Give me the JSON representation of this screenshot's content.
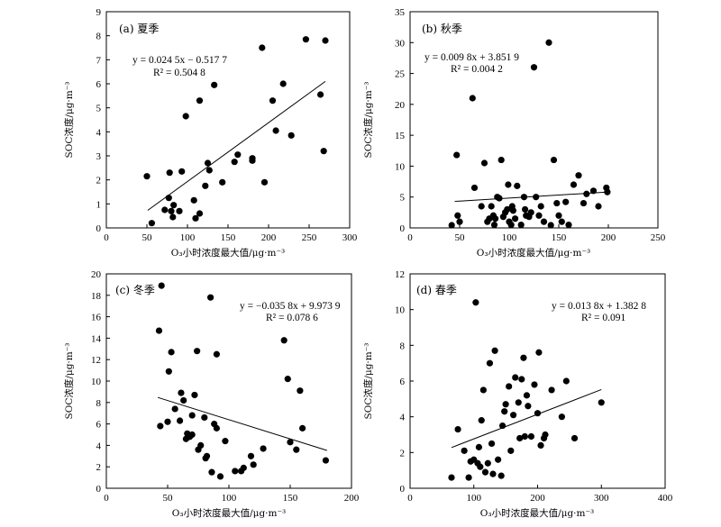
{
  "chart_data": [
    {
      "type": "scatter",
      "title": "(a) 夏季",
      "equation": "y = 0.024 5x − 0.517 7",
      "r2": "R² = 0.504 8",
      "xlabel": "O₃小时浓度最大值/μg·m⁻³",
      "ylabel": "SOC浓度/μg·m⁻³",
      "xlim": [
        0,
        300
      ],
      "ylim": [
        0,
        9
      ],
      "xticks": [
        "0",
        "50",
        "100",
        "150",
        "200",
        "250",
        "300"
      ],
      "yticks": [
        "0",
        "1",
        "2",
        "3",
        "4",
        "5",
        "6",
        "7",
        "8",
        "9"
      ],
      "fit": {
        "slope": 0.0245,
        "intercept": -0.5177,
        "x_range": [
          51,
          270
        ]
      },
      "points": [
        [
          50,
          2.15
        ],
        [
          56,
          0.2
        ],
        [
          72,
          0.75
        ],
        [
          77,
          1.25
        ],
        [
          78,
          2.3
        ],
        [
          80,
          0.7
        ],
        [
          82,
          0.45
        ],
        [
          83,
          0.95
        ],
        [
          90,
          0.7
        ],
        [
          93,
          2.35
        ],
        [
          98,
          4.65
        ],
        [
          108,
          1.15
        ],
        [
          110,
          0.4
        ],
        [
          115,
          0.6
        ],
        [
          115,
          5.3
        ],
        [
          122,
          1.75
        ],
        [
          125,
          2.7
        ],
        [
          127,
          2.4
        ],
        [
          133,
          5.95
        ],
        [
          143,
          1.9
        ],
        [
          158,
          2.75
        ],
        [
          162,
          3.05
        ],
        [
          180,
          2.8
        ],
        [
          180,
          2.9
        ],
        [
          192,
          7.5
        ],
        [
          195,
          1.9
        ],
        [
          205,
          5.3
        ],
        [
          209,
          4.05
        ],
        [
          218,
          6.0
        ],
        [
          228,
          3.85
        ],
        [
          246,
          7.85
        ],
        [
          264,
          5.55
        ],
        [
          268,
          3.2
        ],
        [
          270,
          7.8
        ]
      ]
    },
    {
      "type": "scatter",
      "title": "(b) 秋季",
      "equation": "y = 0.009 8x + 3.851 9",
      "r2": "R² = 0.004 2",
      "xlabel": "O₃小时浓度最大值/μg·m⁻³",
      "ylabel": "SOC浓度/μg·m⁻³",
      "xlim": [
        0,
        250
      ],
      "ylim": [
        0,
        35
      ],
      "xticks": [
        "0",
        "50",
        "100",
        "150",
        "200",
        "250"
      ],
      "yticks": [
        "0",
        "5",
        "10",
        "15",
        "20",
        "25",
        "30",
        "35"
      ],
      "fit": {
        "slope": 0.0098,
        "intercept": 3.8519,
        "x_range": [
          45,
          200
        ]
      },
      "points": [
        [
          42,
          0.3
        ],
        [
          47,
          11.8
        ],
        [
          48,
          2.0
        ],
        [
          50,
          1.0
        ],
        [
          63,
          21.0
        ],
        [
          65,
          6.5
        ],
        [
          72,
          3.5
        ],
        [
          75,
          10.5
        ],
        [
          78,
          1.0
        ],
        [
          80,
          1.5
        ],
        [
          82,
          3.5
        ],
        [
          84,
          2.0
        ],
        [
          85,
          0.5
        ],
        [
          86,
          1.5
        ],
        [
          88,
          5.0
        ],
        [
          90,
          4.8
        ],
        [
          92,
          11.0
        ],
        [
          94,
          1.8
        ],
        [
          96,
          2.5
        ],
        [
          98,
          3.0
        ],
        [
          99,
          7.0
        ],
        [
          100,
          1.0
        ],
        [
          102,
          0.5
        ],
        [
          103,
          3.5
        ],
        [
          104,
          2.8
        ],
        [
          106,
          1.5
        ],
        [
          108,
          6.8
        ],
        [
          112,
          0.5
        ],
        [
          115,
          5.0
        ],
        [
          116,
          3.0
        ],
        [
          117,
          2.0
        ],
        [
          120,
          1.8
        ],
        [
          122,
          2.5
        ],
        [
          125,
          26.0
        ],
        [
          127,
          5.0
        ],
        [
          130,
          2.0
        ],
        [
          132,
          3.5
        ],
        [
          135,
          1.0
        ],
        [
          140,
          30.0
        ],
        [
          142,
          0.3
        ],
        [
          145,
          11.0
        ],
        [
          148,
          4.0
        ],
        [
          150,
          2.0
        ],
        [
          153,
          1.0
        ],
        [
          157,
          4.2
        ],
        [
          160,
          0.5
        ],
        [
          165,
          7.0
        ],
        [
          170,
          8.5
        ],
        [
          175,
          4.0
        ],
        [
          178,
          5.5
        ],
        [
          185,
          6.0
        ],
        [
          190,
          3.5
        ],
        [
          198,
          6.5
        ],
        [
          199,
          5.8
        ]
      ]
    },
    {
      "type": "scatter",
      "title": "(c) 冬季",
      "equation": "y = −0.035 8x + 9.973 9",
      "r2": "R² = 0.078 6",
      "xlabel": "O₃小时浓度最大值/μg·m⁻³",
      "ylabel": "SOC浓度/μg·m⁻³",
      "xlim": [
        0,
        200
      ],
      "ylim": [
        0,
        20
      ],
      "xticks": [
        "0",
        "50",
        "100",
        "150",
        "200"
      ],
      "yticks": [
        "0",
        "2",
        "4",
        "6",
        "8",
        "10",
        "12",
        "14",
        "16",
        "18",
        "20"
      ],
      "fit": {
        "slope": -0.0358,
        "intercept": 9.9739,
        "x_range": [
          42,
          180
        ]
      },
      "points": [
        [
          43,
          14.7
        ],
        [
          44,
          5.8
        ],
        [
          45,
          18.9
        ],
        [
          50,
          6.2
        ],
        [
          51,
          10.9
        ],
        [
          53,
          12.7
        ],
        [
          56,
          7.4
        ],
        [
          60,
          6.3
        ],
        [
          61,
          8.9
        ],
        [
          63,
          8.2
        ],
        [
          65,
          4.6
        ],
        [
          66,
          5.1
        ],
        [
          68,
          4.8
        ],
        [
          70,
          5.0
        ],
        [
          70,
          6.8
        ],
        [
          72,
          8.7
        ],
        [
          74,
          12.8
        ],
        [
          75,
          3.6
        ],
        [
          77,
          4.0
        ],
        [
          80,
          6.6
        ],
        [
          81,
          2.8
        ],
        [
          82,
          3.0
        ],
        [
          85,
          17.8
        ],
        [
          86,
          1.5
        ],
        [
          88,
          6.0
        ],
        [
          90,
          12.5
        ],
        [
          90,
          5.6
        ],
        [
          93,
          1.1
        ],
        [
          97,
          4.4
        ],
        [
          105,
          1.6
        ],
        [
          110,
          1.6
        ],
        [
          112,
          1.9
        ],
        [
          118,
          3.0
        ],
        [
          120,
          2.2
        ],
        [
          128,
          3.7
        ],
        [
          145,
          13.8
        ],
        [
          148,
          10.2
        ],
        [
          150,
          4.3
        ],
        [
          155,
          3.6
        ],
        [
          158,
          9.1
        ],
        [
          160,
          5.6
        ],
        [
          179,
          2.6
        ]
      ]
    },
    {
      "type": "scatter",
      "title": "(d) 春季",
      "equation": "y = 0.013 8x + 1.382 8",
      "r2": "R² = 0.091",
      "xlabel": "O₃小时浓度最大值/μg·m⁻³",
      "ylabel": "SOC浓度/μg·m⁻³",
      "xlim": [
        0,
        400
      ],
      "ylim": [
        0,
        12
      ],
      "xticks": [
        "0",
        "100",
        "200",
        "300",
        "400"
      ],
      "yticks": [
        "0",
        "2",
        "4",
        "6",
        "8",
        "10",
        "12"
      ],
      "fit": {
        "slope": 0.0138,
        "intercept": 1.3828,
        "x_range": [
          65,
          300
        ]
      },
      "points": [
        [
          65,
          0.6
        ],
        [
          75,
          3.3
        ],
        [
          85,
          2.1
        ],
        [
          92,
          0.6
        ],
        [
          95,
          1.5
        ],
        [
          100,
          1.6
        ],
        [
          103,
          10.4
        ],
        [
          106,
          1.4
        ],
        [
          108,
          2.3
        ],
        [
          110,
          1.2
        ],
        [
          112,
          3.8
        ],
        [
          115,
          5.5
        ],
        [
          118,
          0.9
        ],
        [
          122,
          1.4
        ],
        [
          125,
          7.0
        ],
        [
          128,
          2.5
        ],
        [
          130,
          0.8
        ],
        [
          133,
          7.7
        ],
        [
          138,
          1.6
        ],
        [
          143,
          0.7
        ],
        [
          145,
          3.5
        ],
        [
          148,
          4.3
        ],
        [
          150,
          4.7
        ],
        [
          155,
          5.7
        ],
        [
          158,
          2.1
        ],
        [
          162,
          4.1
        ],
        [
          165,
          6.2
        ],
        [
          170,
          4.8
        ],
        [
          172,
          2.8
        ],
        [
          175,
          6.1
        ],
        [
          178,
          7.3
        ],
        [
          180,
          2.9
        ],
        [
          183,
          5.2
        ],
        [
          185,
          4.6
        ],
        [
          190,
          2.9
        ],
        [
          195,
          5.8
        ],
        [
          200,
          4.2
        ],
        [
          202,
          7.6
        ],
        [
          205,
          2.4
        ],
        [
          210,
          2.8
        ],
        [
          212,
          3.0
        ],
        [
          222,
          5.5
        ],
        [
          238,
          4.0
        ],
        [
          245,
          6.0
        ],
        [
          258,
          2.8
        ],
        [
          300,
          4.8
        ]
      ]
    }
  ]
}
